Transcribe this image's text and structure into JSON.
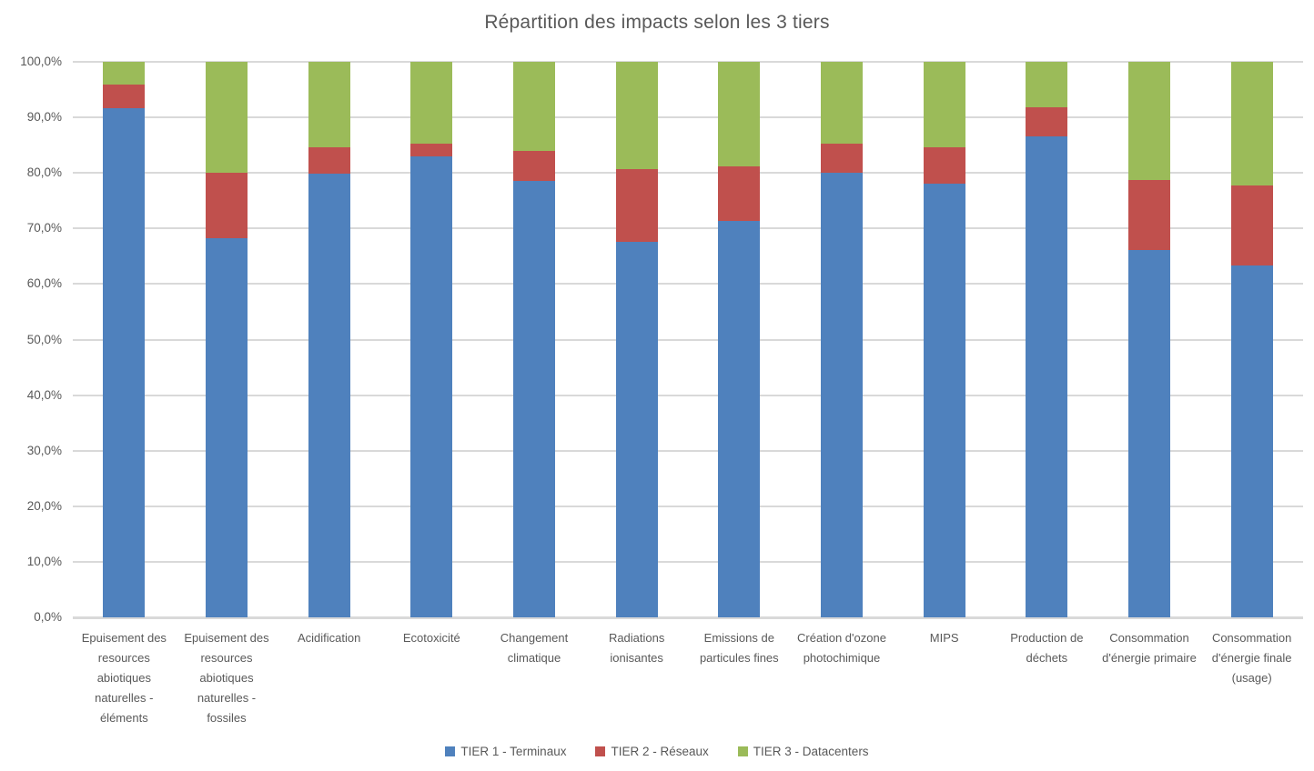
{
  "chart_data": {
    "type": "bar",
    "variant": "stacked-100-percent",
    "title": "Répartition des impacts selon les 3 tiers",
    "categories": [
      "Epuisement des resources abiotiques naturelles - éléments",
      "Epuisement des resources abiotiques naturelles - fossiles",
      "Acidification",
      "Ecotoxicité",
      "Changement climatique",
      "Radiations ionisantes",
      "Emissions de particules fines",
      "Création d'ozone photochimique",
      "MIPS",
      "Production de déchets",
      "Consommation d'énergie primaire",
      "Consommation d'énergie finale (usage)"
    ],
    "series": [
      {
        "name": "TIER 1 - Terminaux",
        "color": "#4F81BD",
        "values": [
          91.6,
          68.3,
          79.8,
          83.0,
          78.5,
          67.6,
          71.4,
          80.0,
          78.0,
          86.6,
          66.2,
          63.4
        ]
      },
      {
        "name": "TIER 2 - Réseaux",
        "color": "#C0504D",
        "values": [
          4.3,
          11.7,
          4.8,
          2.2,
          5.5,
          13.1,
          9.7,
          5.2,
          6.7,
          5.3,
          12.5,
          14.3
        ]
      },
      {
        "name": "TIER 3 - Datacenters",
        "color": "#9BBB59",
        "values": [
          4.1,
          20.0,
          15.4,
          14.8,
          16.0,
          19.3,
          18.9,
          14.8,
          15.3,
          8.1,
          21.3,
          22.3
        ]
      }
    ],
    "y_ticks": [
      "0,0%",
      "10,0%",
      "20,0%",
      "30,0%",
      "40,0%",
      "50,0%",
      "60,0%",
      "70,0%",
      "80,0%",
      "90,0%",
      "100,0%"
    ],
    "ylim": [
      0,
      100
    ],
    "grid": true,
    "legend_position": "bottom",
    "colors": {
      "text": "#595959",
      "gridline": "#D9D9D9",
      "axis_line": "#D9D9D9",
      "background": "#FFFFFF"
    }
  }
}
